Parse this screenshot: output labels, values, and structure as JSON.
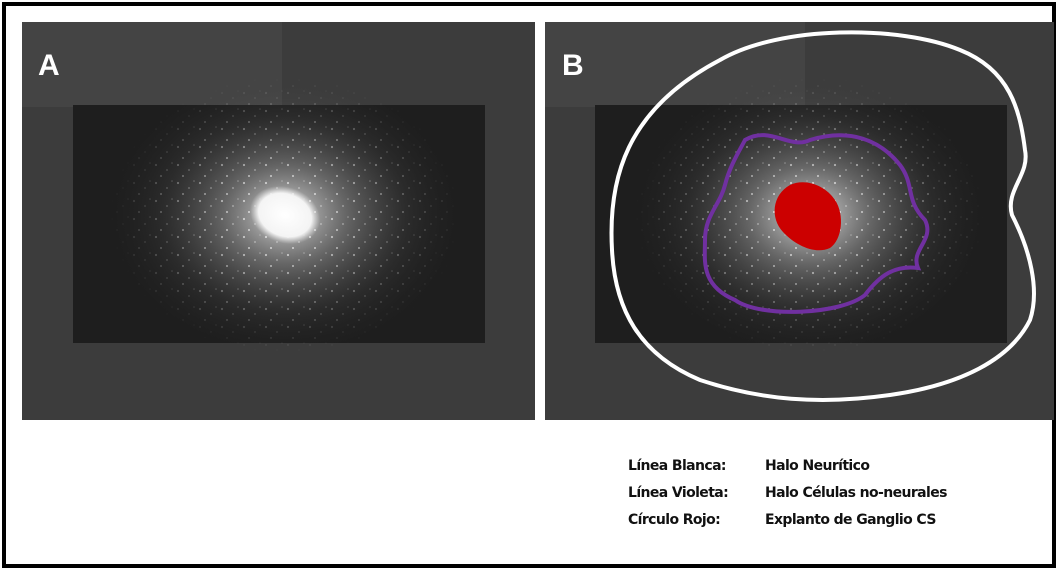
{
  "panels": [
    {
      "label": "A"
    },
    {
      "label": "B"
    }
  ],
  "legend": [
    {
      "key": "Línea Blanca:",
      "description": "Halo Neurítico"
    },
    {
      "key": "Línea Violeta:",
      "description": "Halo Células no-neurales"
    },
    {
      "key": "Círculo Rojo:",
      "description": "Explanto de Ganglio CS"
    }
  ]
}
